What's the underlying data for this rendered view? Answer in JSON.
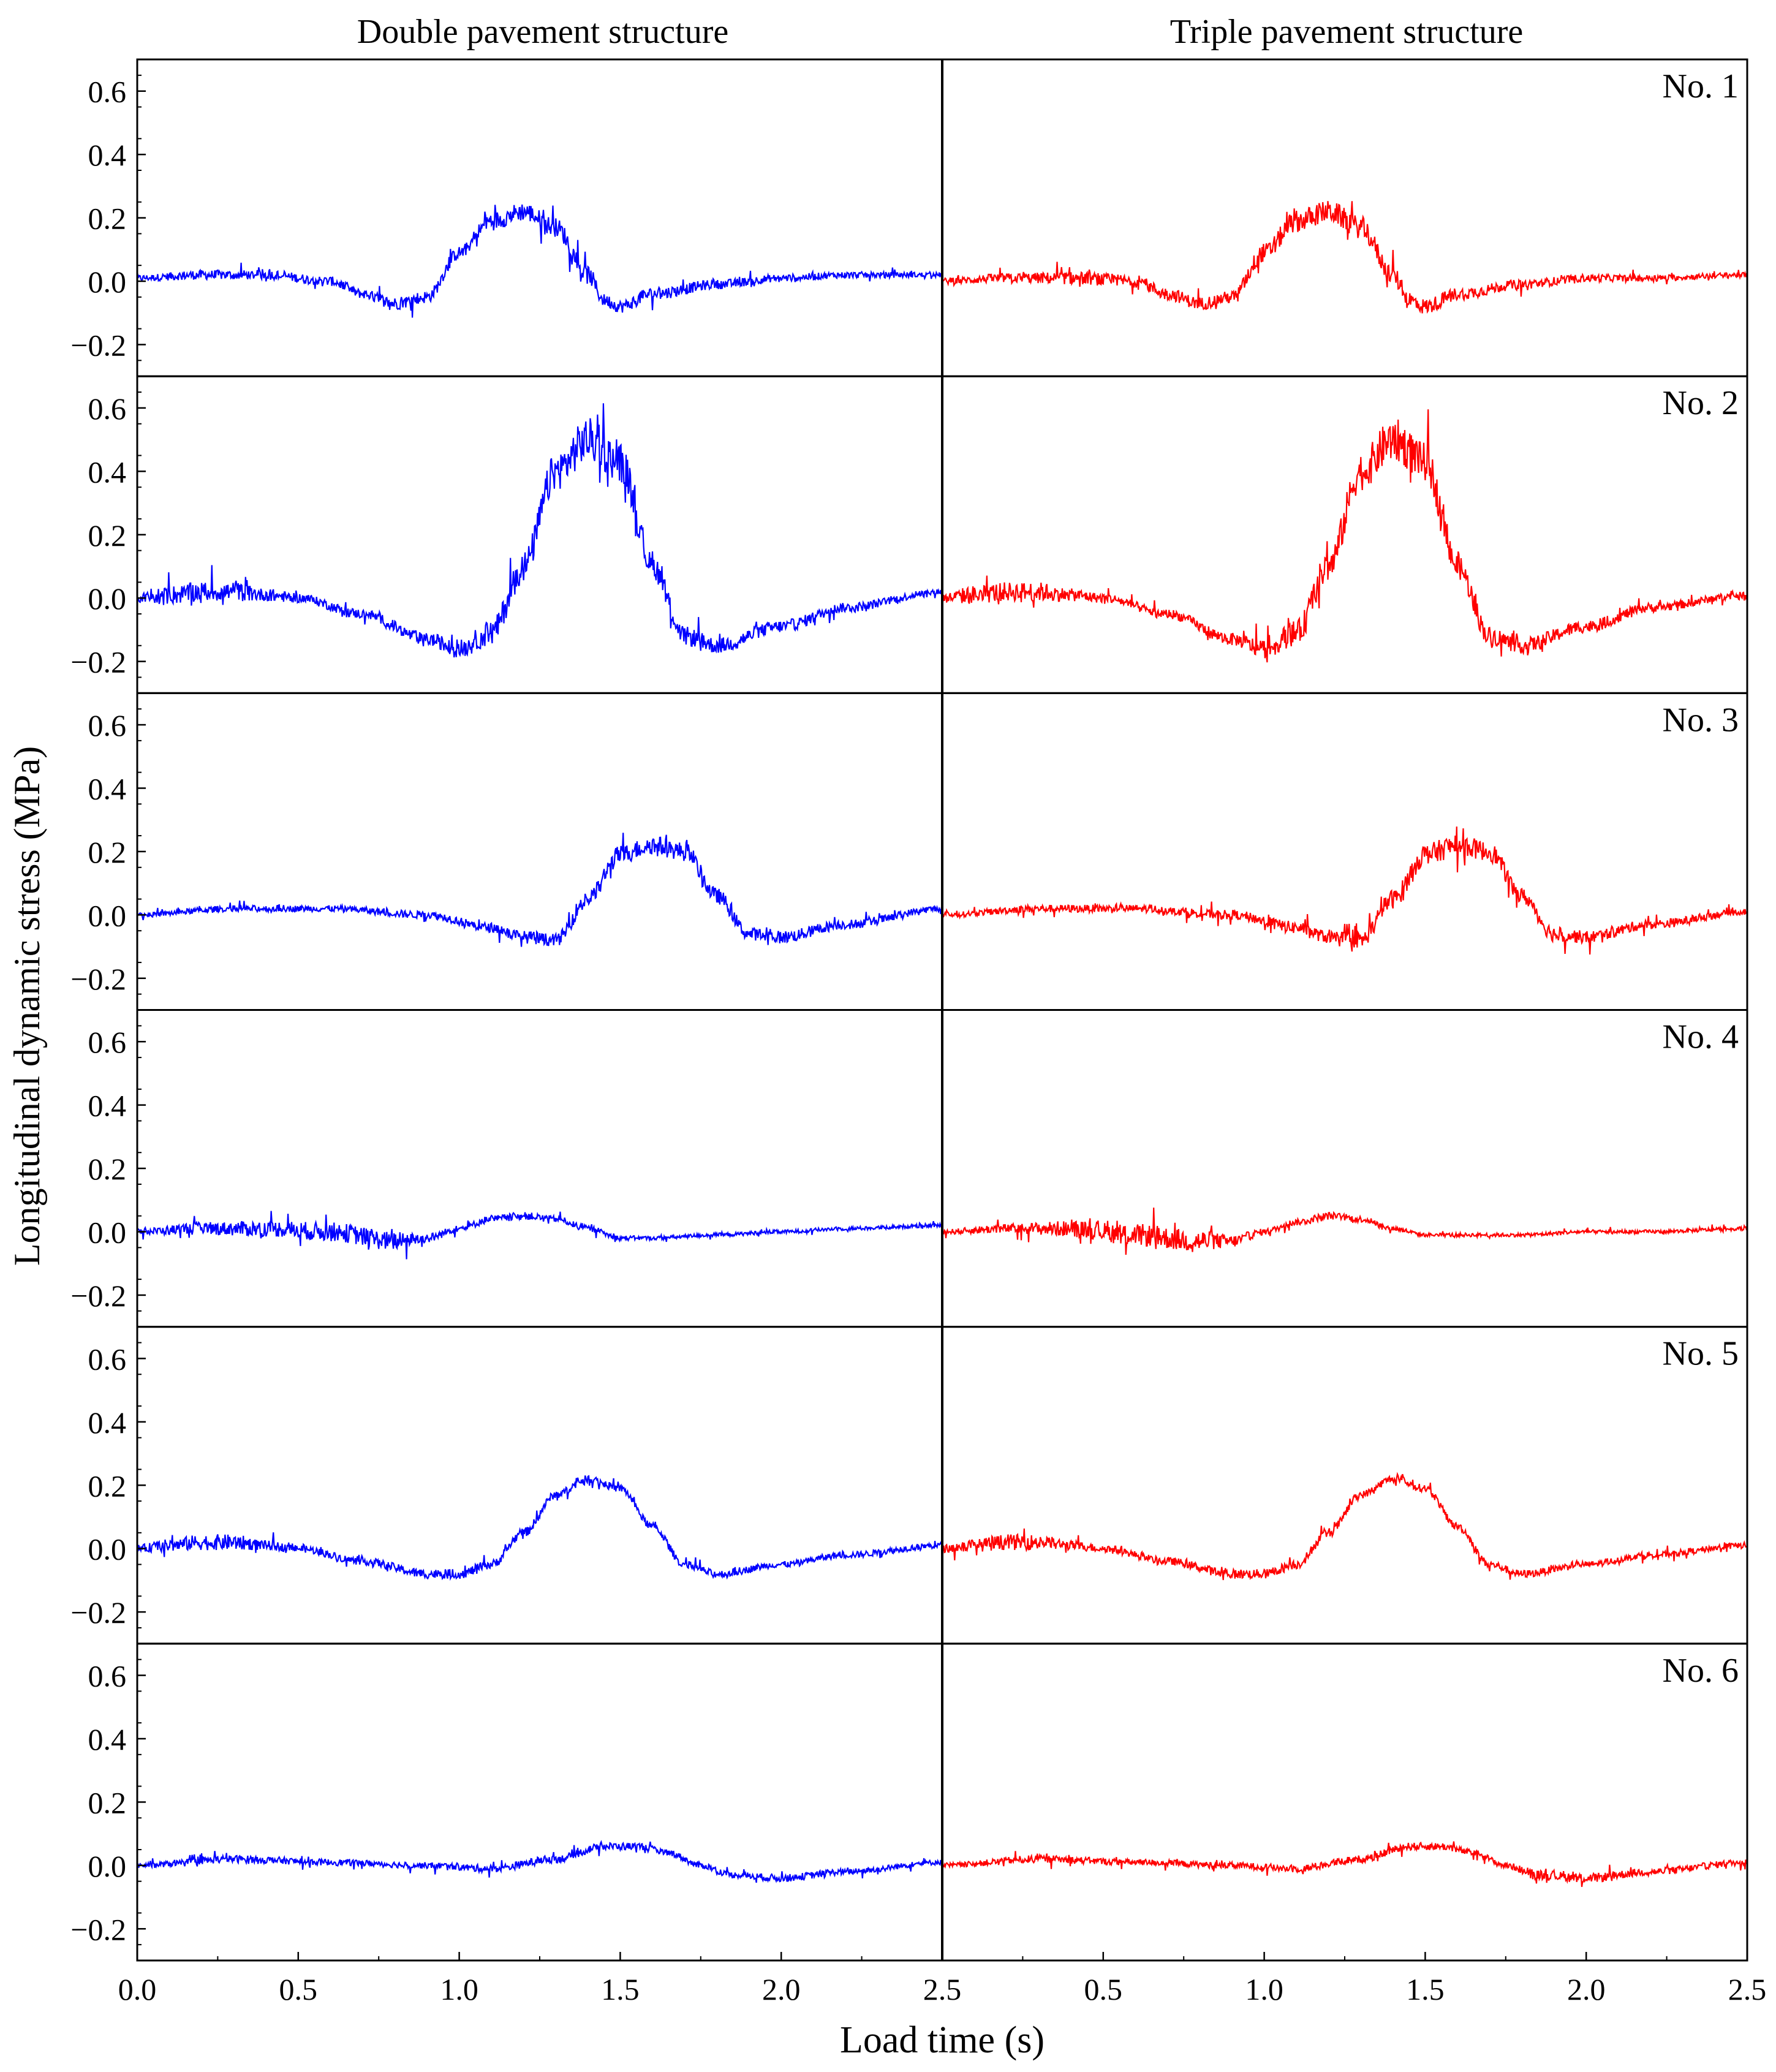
{
  "figure": {
    "ylabel": "Longitudinal dynamic stress (MPa)",
    "xlabel": "Load time (s)",
    "column_titles": [
      "Double pavement structure",
      "Triple pavement structure"
    ],
    "colors": {
      "double": "#0000ff",
      "triple": "#ff0000",
      "axes": "#000000"
    },
    "rows": [
      "No. 1",
      "No. 2",
      "No. 3",
      "No. 4",
      "No. 5",
      "No. 6"
    ]
  },
  "chart_data": {
    "type": "line",
    "layout": "6 rows x 2 columns, shared axes",
    "x_label": "Load time (s)",
    "y_label": "Longitudinal dynamic stress (MPa)",
    "xlim": [
      0,
      2.5
    ],
    "ylim": [
      -0.3,
      0.7
    ],
    "x_ticks": [
      0,
      0.5,
      1.0,
      1.5,
      2.0,
      2.5
    ],
    "x_tick_labels": [
      "0.0",
      "0.5",
      "1.0",
      "1.5",
      "2.0",
      "2.5"
    ],
    "y_ticks": [
      -0.2,
      0.0,
      0.2,
      0.4,
      0.6
    ],
    "y_tick_labels": [
      "−0.2",
      "0.0",
      "0.2",
      "0.4",
      "0.6"
    ],
    "grid": false,
    "legend": "none",
    "columns": [
      "Double pavement structure",
      "Triple pavement structure"
    ],
    "panels": [
      {
        "label": "No. 1",
        "series": [
          {
            "column": "Double pavement structure",
            "color": "#0000ff",
            "x": [
              0,
              0.2,
              0.4,
              0.6,
              0.7,
              0.8,
              0.9,
              1.0,
              1.1,
              1.2,
              1.3,
              1.4,
              1.45,
              1.5,
              1.6,
              1.8,
              2.0,
              2.2,
              2.5
            ],
            "y": [
              0.01,
              0.02,
              0.02,
              0.0,
              -0.04,
              -0.07,
              -0.05,
              0.09,
              0.19,
              0.22,
              0.17,
              0.02,
              -0.06,
              -0.08,
              -0.04,
              -0.01,
              0.01,
              0.02,
              0.02
            ],
            "noise": [
              0.01,
              0.015,
              0.015,
              0.015,
              0.015,
              0.02,
              0.02,
              0.02,
              0.03,
              0.03,
              0.03,
              0.03,
              0.02,
              0.02,
              0.02,
              0.015,
              0.012,
              0.01,
              0.008
            ]
          },
          {
            "column": "Triple pavement structure",
            "color": "#ff0000",
            "x": [
              0,
              0.2,
              0.4,
              0.6,
              0.7,
              0.8,
              0.9,
              1.0,
              1.1,
              1.2,
              1.3,
              1.4,
              1.45,
              1.5,
              1.6,
              1.8,
              2.0,
              2.2,
              2.5
            ],
            "y": [
              0.0,
              0.01,
              0.01,
              0.0,
              -0.04,
              -0.07,
              -0.05,
              0.09,
              0.19,
              0.22,
              0.17,
              0.02,
              -0.06,
              -0.08,
              -0.04,
              -0.01,
              0.01,
              0.01,
              0.02
            ],
            "noise": [
              0.01,
              0.015,
              0.02,
              0.02,
              0.02,
              0.02,
              0.02,
              0.03,
              0.035,
              0.035,
              0.035,
              0.03,
              0.03,
              0.025,
              0.02,
              0.015,
              0.012,
              0.01,
              0.008
            ]
          }
        ]
      },
      {
        "label": "No. 2",
        "series": [
          {
            "column": "Double pavement structure",
            "color": "#0000ff",
            "x": [
              0,
              0.1,
              0.2,
              0.3,
              0.4,
              0.5,
              0.7,
              0.9,
              1.0,
              1.1,
              1.2,
              1.3,
              1.4,
              1.5,
              1.6,
              1.7,
              1.8,
              2.0,
              2.2,
              2.5
            ],
            "y": [
              0.0,
              0.01,
              0.02,
              0.02,
              0.01,
              0.0,
              -0.05,
              -0.13,
              -0.16,
              -0.11,
              0.1,
              0.4,
              0.5,
              0.43,
              0.1,
              -0.12,
              -0.15,
              -0.09,
              -0.03,
              0.02
            ],
            "noise": [
              0.015,
              0.03,
              0.03,
              0.03,
              0.02,
              0.015,
              0.015,
              0.02,
              0.03,
              0.04,
              0.05,
              0.06,
              0.07,
              0.06,
              0.04,
              0.03,
              0.025,
              0.02,
              0.015,
              0.01
            ]
          },
          {
            "column": "Triple pavement structure",
            "color": "#ff0000",
            "x": [
              0,
              0.1,
              0.2,
              0.3,
              0.4,
              0.5,
              0.7,
              0.9,
              1.0,
              1.1,
              1.2,
              1.3,
              1.4,
              1.5,
              1.6,
              1.7,
              1.8,
              2.0,
              2.2,
              2.5
            ],
            "y": [
              0.0,
              0.01,
              0.02,
              0.02,
              0.01,
              0.0,
              -0.05,
              -0.13,
              -0.16,
              -0.11,
              0.1,
              0.4,
              0.5,
              0.43,
              0.1,
              -0.12,
              -0.15,
              -0.09,
              -0.03,
              0.01
            ],
            "noise": [
              0.015,
              0.03,
              0.03,
              0.03,
              0.02,
              0.015,
              0.015,
              0.02,
              0.03,
              0.04,
              0.05,
              0.06,
              0.07,
              0.06,
              0.04,
              0.03,
              0.025,
              0.02,
              0.015,
              0.01
            ]
          }
        ]
      },
      {
        "label": "No. 3",
        "series": [
          {
            "column": "Double pavement structure",
            "color": "#0000ff",
            "x": [
              0,
              0.3,
              0.6,
              0.9,
              1.1,
              1.2,
              1.3,
              1.4,
              1.5,
              1.6,
              1.7,
              1.8,
              1.9,
              2.0,
              2.2,
              2.5
            ],
            "y": [
              0.0,
              0.02,
              0.02,
              0.0,
              -0.04,
              -0.07,
              -0.08,
              0.05,
              0.19,
              0.22,
              0.2,
              0.06,
              -0.06,
              -0.07,
              -0.03,
              0.02
            ],
            "noise": [
              0.008,
              0.01,
              0.01,
              0.012,
              0.015,
              0.02,
              0.02,
              0.03,
              0.03,
              0.03,
              0.03,
              0.025,
              0.02,
              0.02,
              0.015,
              0.01
            ]
          },
          {
            "column": "Triple pavement structure",
            "color": "#ff0000",
            "x": [
              0,
              0.3,
              0.6,
              0.9,
              1.1,
              1.2,
              1.3,
              1.4,
              1.5,
              1.6,
              1.7,
              1.8,
              1.9,
              2.0,
              2.2,
              2.5
            ],
            "y": [
              0.0,
              0.02,
              0.02,
              0.0,
              -0.04,
              -0.07,
              -0.08,
              0.05,
              0.19,
              0.22,
              0.2,
              0.06,
              -0.06,
              -0.07,
              -0.03,
              0.01
            ],
            "noise": [
              0.008,
              0.012,
              0.012,
              0.015,
              0.02,
              0.02,
              0.025,
              0.03,
              0.035,
              0.035,
              0.03,
              0.025,
              0.025,
              0.02,
              0.015,
              0.01
            ]
          }
        ]
      },
      {
        "label": "No. 4",
        "series": [
          {
            "column": "Double pavement structure",
            "color": "#0000ff",
            "x": [
              0,
              0.2,
              0.4,
              0.6,
              0.8,
              0.9,
              1.0,
              1.1,
              1.2,
              1.3,
              1.4,
              1.5,
              1.6,
              1.8,
              2.0,
              2.2,
              2.5
            ],
            "y": [
              0.0,
              0.01,
              0.01,
              0.0,
              -0.03,
              -0.02,
              0.01,
              0.04,
              0.05,
              0.04,
              0.01,
              -0.02,
              -0.02,
              -0.01,
              0.0,
              0.01,
              0.02
            ],
            "noise": [
              0.01,
              0.02,
              0.025,
              0.03,
              0.03,
              0.015,
              0.01,
              0.012,
              0.012,
              0.01,
              0.01,
              0.008,
              0.006,
              0.006,
              0.006,
              0.006,
              0.006
            ]
          },
          {
            "column": "Triple pavement structure",
            "color": "#ff0000",
            "x": [
              0,
              0.2,
              0.4,
              0.6,
              0.8,
              0.9,
              1.0,
              1.1,
              1.2,
              1.3,
              1.4,
              1.5,
              1.6,
              1.8,
              2.0,
              2.2,
              2.5
            ],
            "y": [
              0.0,
              0.01,
              0.01,
              -0.01,
              -0.03,
              -0.03,
              0.0,
              0.03,
              0.05,
              0.04,
              0.01,
              -0.01,
              -0.01,
              -0.01,
              0.0,
              0.0,
              0.01
            ],
            "noise": [
              0.008,
              0.015,
              0.025,
              0.035,
              0.035,
              0.02,
              0.01,
              0.01,
              0.012,
              0.01,
              0.008,
              0.006,
              0.006,
              0.006,
              0.006,
              0.006,
              0.006
            ]
          }
        ]
      },
      {
        "label": "No. 5",
        "series": [
          {
            "column": "Double pavement structure",
            "color": "#0000ff",
            "x": [
              0,
              0.1,
              0.2,
              0.3,
              0.4,
              0.5,
              0.7,
              0.9,
              1.0,
              1.1,
              1.2,
              1.3,
              1.4,
              1.5,
              1.6,
              1.7,
              1.8,
              2.0,
              2.2,
              2.5
            ],
            "y": [
              0.0,
              0.01,
              0.02,
              0.02,
              0.01,
              0.0,
              -0.04,
              -0.08,
              -0.08,
              -0.05,
              0.05,
              0.17,
              0.22,
              0.19,
              0.07,
              -0.05,
              -0.08,
              -0.05,
              -0.02,
              0.01
            ],
            "noise": [
              0.012,
              0.02,
              0.025,
              0.025,
              0.015,
              0.012,
              0.012,
              0.015,
              0.015,
              0.015,
              0.015,
              0.012,
              0.012,
              0.012,
              0.012,
              0.012,
              0.012,
              0.01,
              0.01,
              0.01
            ]
          },
          {
            "column": "Triple pavement structure",
            "color": "#ff0000",
            "x": [
              0,
              0.1,
              0.2,
              0.3,
              0.4,
              0.5,
              0.7,
              0.9,
              1.0,
              1.1,
              1.2,
              1.3,
              1.4,
              1.5,
              1.6,
              1.7,
              1.8,
              2.0,
              2.2,
              2.5
            ],
            "y": [
              0.0,
              0.01,
              0.02,
              0.02,
              0.01,
              0.0,
              -0.04,
              -0.08,
              -0.08,
              -0.05,
              0.05,
              0.17,
              0.22,
              0.19,
              0.07,
              -0.05,
              -0.08,
              -0.05,
              -0.02,
              0.01
            ],
            "noise": [
              0.012,
              0.02,
              0.025,
              0.025,
              0.015,
              0.012,
              0.012,
              0.015,
              0.015,
              0.015,
              0.015,
              0.012,
              0.012,
              0.012,
              0.012,
              0.012,
              0.012,
              0.01,
              0.01,
              0.01
            ]
          }
        ]
      },
      {
        "label": "No. 6",
        "series": [
          {
            "column": "Double pavement structure",
            "color": "#0000ff",
            "x": [
              0,
              0.3,
              0.6,
              0.9,
              1.1,
              1.3,
              1.45,
              1.55,
              1.65,
              1.75,
              1.85,
              2.0,
              2.2,
              2.5
            ],
            "y": [
              0.0,
              0.02,
              0.01,
              0.0,
              -0.01,
              0.02,
              0.06,
              0.06,
              0.04,
              0.0,
              -0.03,
              -0.04,
              -0.02,
              0.01
            ],
            "noise": [
              0.008,
              0.012,
              0.01,
              0.01,
              0.012,
              0.012,
              0.012,
              0.012,
              0.01,
              0.01,
              0.01,
              0.012,
              0.01,
              0.008
            ]
          },
          {
            "column": "Triple pavement structure",
            "color": "#ff0000",
            "x": [
              0,
              0.3,
              0.6,
              0.9,
              1.1,
              1.3,
              1.45,
              1.55,
              1.65,
              1.75,
              1.85,
              2.0,
              2.2,
              2.5
            ],
            "y": [
              0.0,
              0.02,
              0.01,
              0.0,
              -0.01,
              0.02,
              0.06,
              0.06,
              0.04,
              0.0,
              -0.03,
              -0.04,
              -0.02,
              0.01
            ],
            "noise": [
              0.008,
              0.012,
              0.01,
              0.01,
              0.012,
              0.012,
              0.012,
              0.012,
              0.01,
              0.01,
              0.015,
              0.015,
              0.012,
              0.01
            ]
          }
        ]
      }
    ]
  }
}
